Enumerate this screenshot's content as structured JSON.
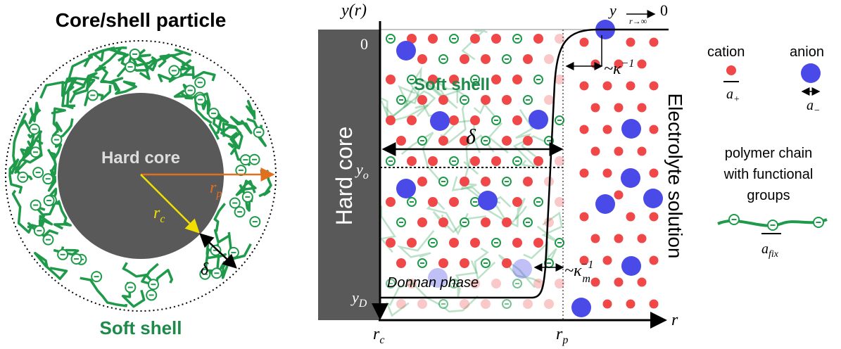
{
  "left": {
    "title": "Core/shell particle",
    "core": "Hard core",
    "rp": {
      "base": "r",
      "sub": "p"
    },
    "rc": {
      "base": "r",
      "sub": "c"
    },
    "delta": "δ",
    "shell": "Soft shell"
  },
  "middle": {
    "y_axis": "y(r)",
    "limit": {
      "base": "y",
      "under": "r→∞",
      "value": "0"
    },
    "zero": "0",
    "yo": {
      "base": "y",
      "sub": "o"
    },
    "yD": {
      "base": "y",
      "sub": "D"
    },
    "kappa": {
      "base": "~κ",
      "sup": "−1"
    },
    "kappa_m": {
      "base": "~κ",
      "sub": "m",
      "sup": "−1"
    },
    "shell": "Soft shell",
    "delta": "δ",
    "core": "Hard core",
    "donnan": "Donnan phase",
    "electrolyte": "Electrolyte solution",
    "rc": {
      "base": "r",
      "sub": "c"
    },
    "rp": {
      "base": "r",
      "sub": "p"
    },
    "r": "r"
  },
  "legend": {
    "cation": "cation",
    "anion": "anion",
    "a_plus": {
      "base": "a",
      "sub": "+"
    },
    "a_minus": {
      "base": "a",
      "sub": "−"
    },
    "polymer": [
      "polymer chain",
      "with functional",
      "groups"
    ],
    "a_fix": {
      "base": "a",
      "sub": "fix"
    }
  }
}
